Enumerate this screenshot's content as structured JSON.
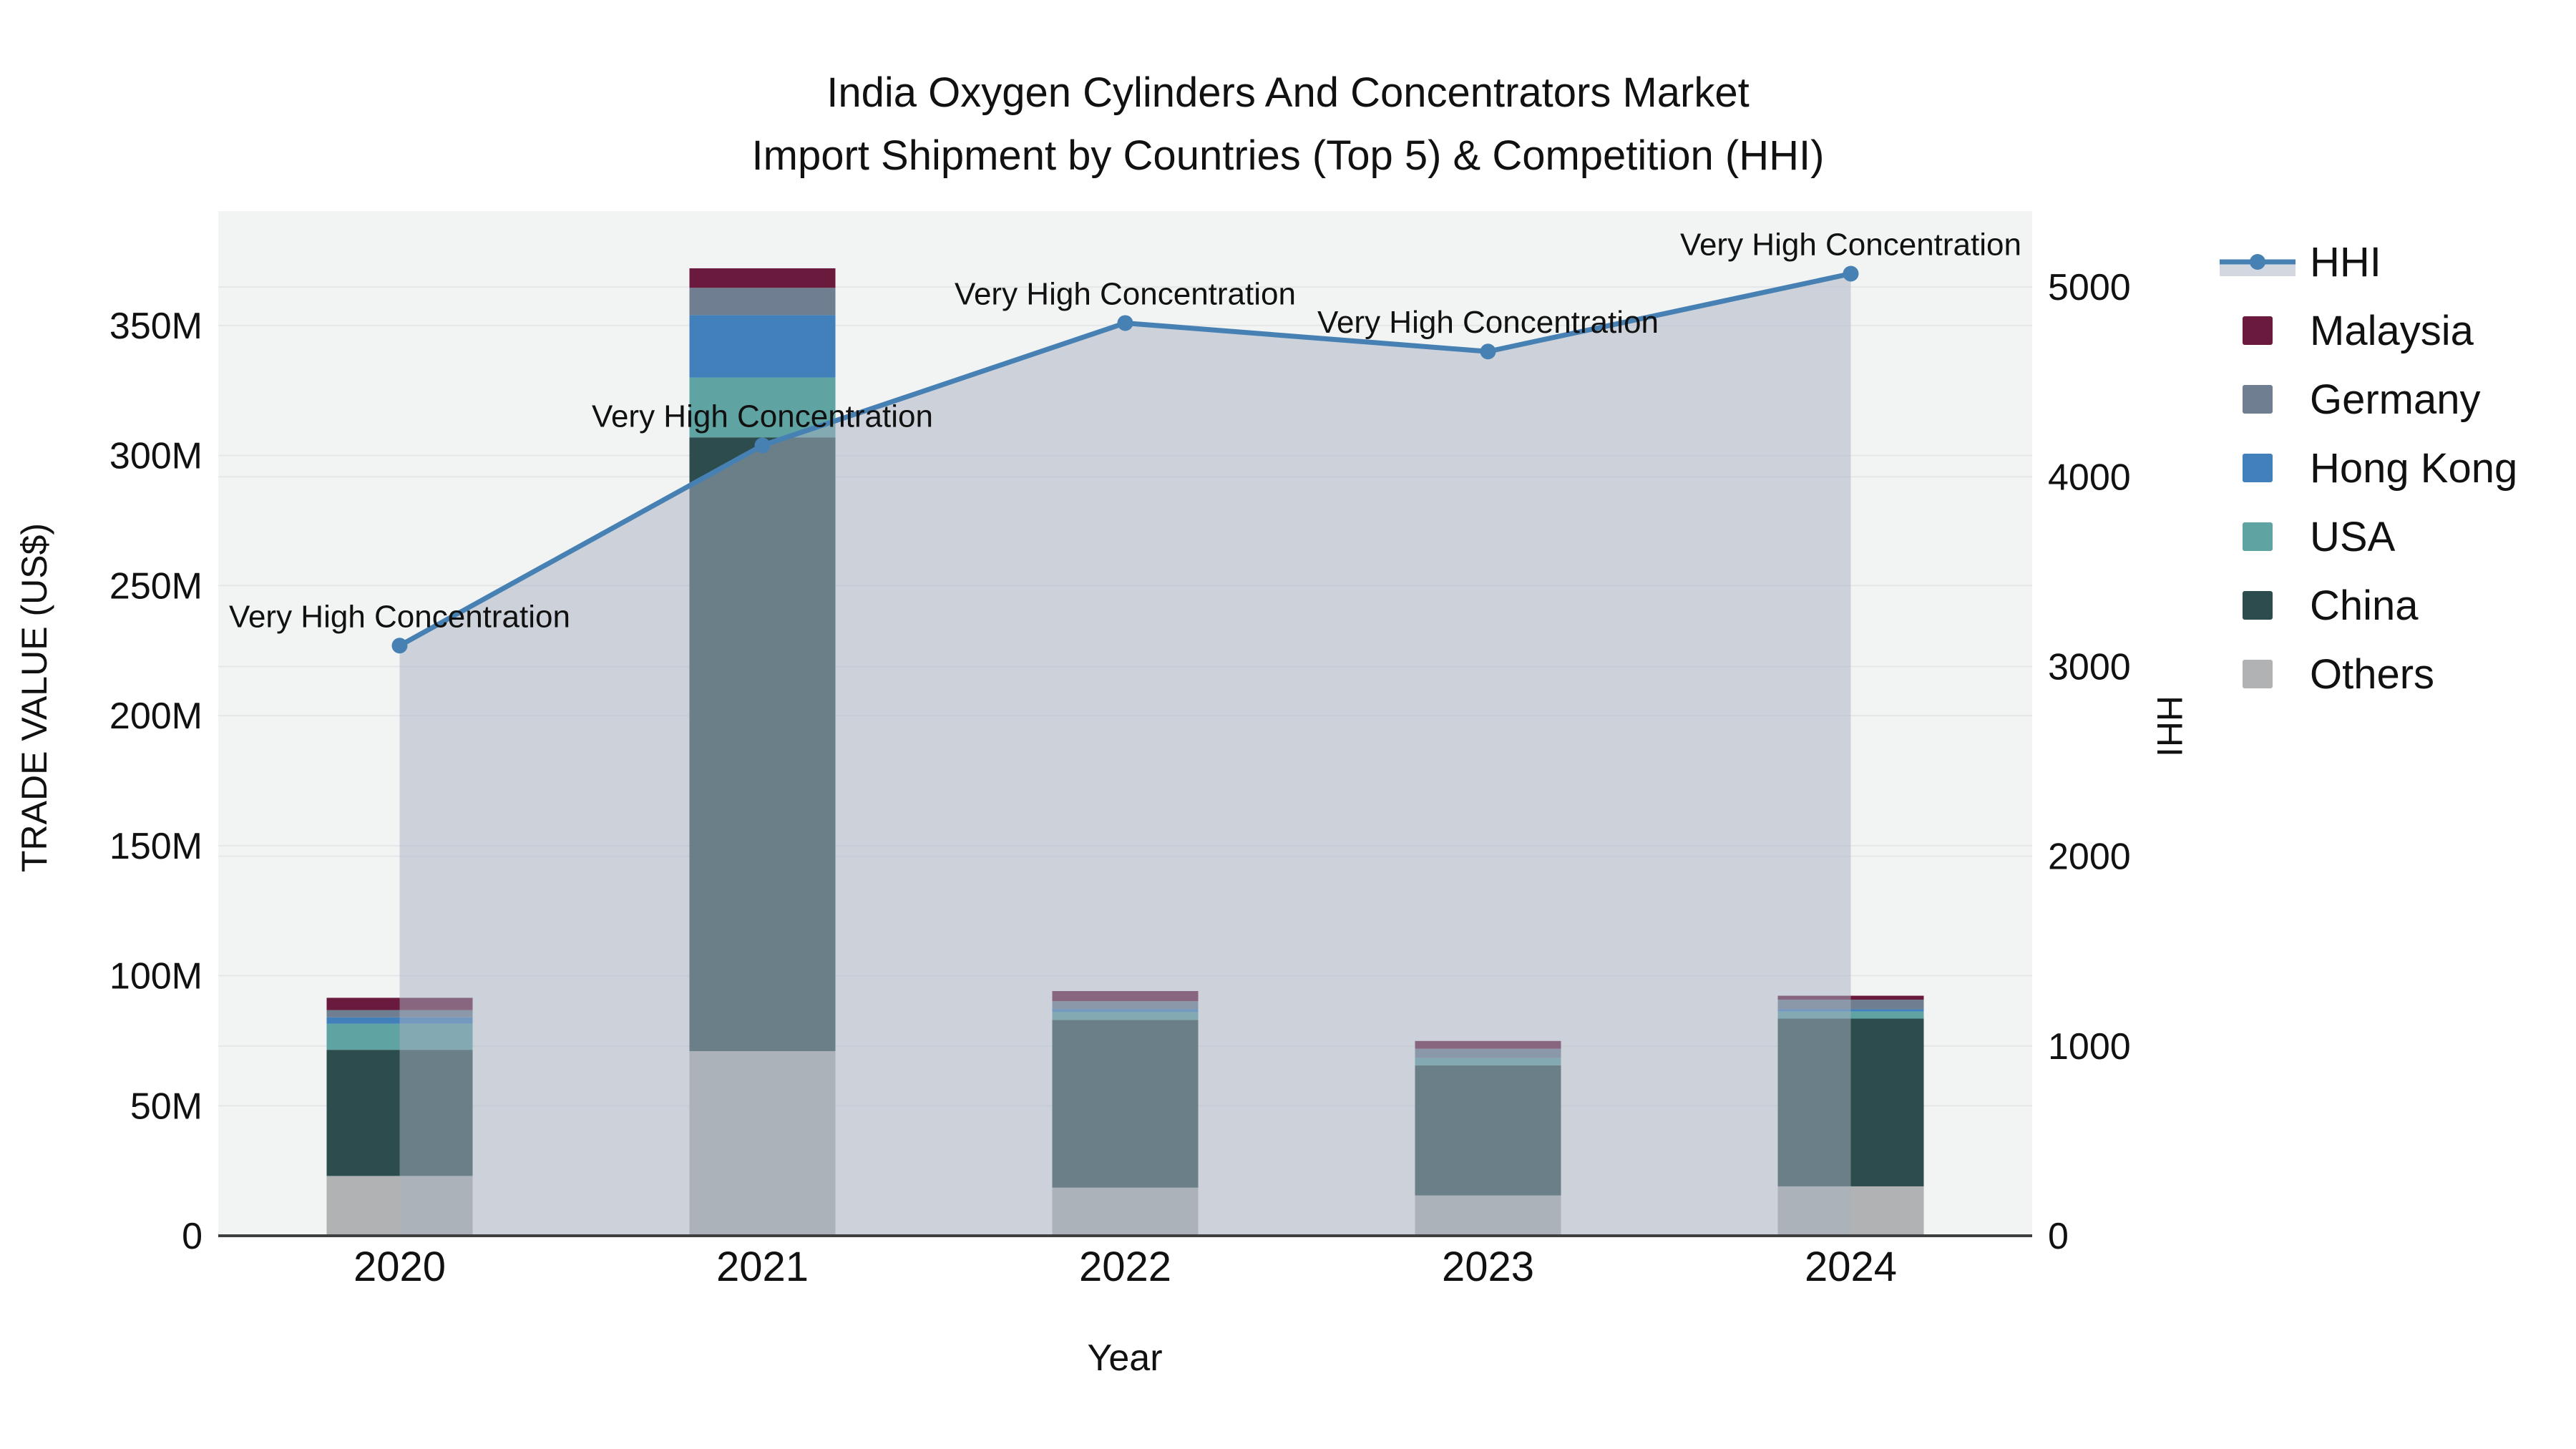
{
  "title": {
    "line1": "India Oxygen Cylinders And Concentrators Market",
    "line2": "Import Shipment by Countries (Top 5) & Competition (HHI)"
  },
  "legend": {
    "items": [
      {
        "label": "HHI",
        "series": "HHI",
        "type": "line"
      },
      {
        "label": "Malaysia",
        "series": "Malaysia",
        "type": "square"
      },
      {
        "label": "Germany",
        "series": "Germany",
        "type": "square"
      },
      {
        "label": "Hong Kong",
        "series": "Hong Kong",
        "type": "square"
      },
      {
        "label": "USA",
        "series": "USA",
        "type": "square"
      },
      {
        "label": "China",
        "series": "China",
        "type": "square"
      },
      {
        "label": "Others",
        "series": "Others",
        "type": "square"
      }
    ]
  },
  "chart_data": {
    "type": "bar",
    "subtype": "stacked-bar-with-line",
    "unit": "US$ millions (bars), HHI index (line)",
    "categories": [
      "2020",
      "2021",
      "2022",
      "2023",
      "2024"
    ],
    "series": [
      {
        "name": "Others",
        "color": "#b0b2b3",
        "values": [
          23,
          71,
          18.5,
          15.5,
          19
        ]
      },
      {
        "name": "China",
        "color": "#2d4c4d",
        "values": [
          48.5,
          236,
          64.5,
          50,
          64.5
        ]
      },
      {
        "name": "USA",
        "color": "#5fa3a2",
        "values": [
          10,
          23,
          3,
          2.8,
          2.7
        ]
      },
      {
        "name": "Hong Kong",
        "color": "#4180ba",
        "values": [
          2.5,
          24,
          1.2,
          0,
          0.9
        ]
      },
      {
        "name": "Germany",
        "color": "#6f7e90",
        "values": [
          2.8,
          10.5,
          3,
          3.6,
          3.7
        ]
      },
      {
        "name": "Malaysia",
        "color": "#6a1a3c",
        "values": [
          4.7,
          7.5,
          3.9,
          3,
          1.5
        ]
      }
    ],
    "line_series": {
      "name": "HHI",
      "color": "#4781b4",
      "area_fill": "rgba(167,177,193,0.5)",
      "axis": "right",
      "values": [
        3110,
        4165,
        4810,
        4660,
        5070
      ]
    },
    "annotations": [
      "Very High Concentration",
      "Very High Concentration",
      "Very High Concentration",
      "Very High Concentration",
      "Very High Concentration"
    ],
    "xlabel": "Year",
    "ylabel_left": "TRADE VALUE (US$)",
    "ylabel_right": "HHI",
    "y_left": {
      "max": 394,
      "ticks": [
        0,
        50,
        100,
        150,
        200,
        250,
        300,
        350
      ],
      "tick_labels": [
        "0",
        "50M",
        "100M",
        "150M",
        "200M",
        "250M",
        "300M",
        "350M"
      ]
    },
    "y_right": {
      "max": 5400,
      "ticks": [
        0,
        1000,
        2000,
        3000,
        4000,
        5000
      ],
      "tick_labels": [
        "0",
        "1000",
        "2000",
        "3000",
        "4000",
        "5000"
      ]
    },
    "plot_bg": "#f2f3f3",
    "grid_color": "#e4e6e8",
    "axis_line_color": "#3f3f3f",
    "text_color": "#111111"
  }
}
